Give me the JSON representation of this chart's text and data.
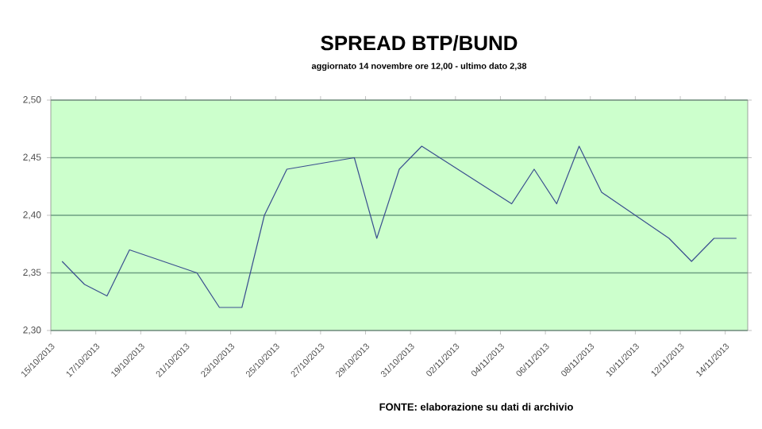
{
  "chart_data": {
    "type": "line",
    "title": "SPREAD BTP/BUND",
    "subtitle": "aggiornato 14 novembre ore 12,00 - ultimo dato 2,38",
    "x": [
      "2013-10-15T12:00",
      "2013-10-16T12:00",
      "2013-10-17T12:00",
      "2013-10-18T12:00",
      "2013-10-21T12:00",
      "2013-10-22T12:00",
      "2013-10-23T12:00",
      "2013-10-24T12:00",
      "2013-10-25T12:00",
      "2013-10-28T12:00",
      "2013-10-29T12:00",
      "2013-10-30T12:00",
      "2013-10-31T12:00",
      "2013-11-04T12:00",
      "2013-11-05T12:00",
      "2013-11-06T12:00",
      "2013-11-07T12:00",
      "2013-11-08T12:00",
      "2013-11-11T12:00",
      "2013-11-12T12:00",
      "2013-11-13T12:00",
      "2013-11-14T12:00"
    ],
    "values": [
      2.36,
      2.34,
      2.33,
      2.37,
      2.35,
      2.32,
      2.32,
      2.4,
      2.44,
      2.45,
      2.38,
      2.44,
      2.46,
      2.41,
      2.44,
      2.41,
      2.46,
      2.42,
      2.38,
      2.36,
      2.38,
      2.38
    ],
    "color": "#3a4f8f",
    "xlim": [
      "2013-10-15",
      "2013-11-15"
    ],
    "xticks": [
      {
        "value": "2013-10-15",
        "label": "15/10/2013"
      },
      {
        "value": "2013-10-17",
        "label": "17/10/2013"
      },
      {
        "value": "2013-10-19",
        "label": "19/10/2013"
      },
      {
        "value": "2013-10-21",
        "label": "21/10/2013"
      },
      {
        "value": "2013-10-23",
        "label": "23/10/2013"
      },
      {
        "value": "2013-10-25",
        "label": "25/10/2013"
      },
      {
        "value": "2013-10-27",
        "label": "27/10/2013"
      },
      {
        "value": "2013-10-29",
        "label": "29/10/2013"
      },
      {
        "value": "2013-10-31",
        "label": "31/10/2013"
      },
      {
        "value": "2013-11-02",
        "label": "02/11/2013"
      },
      {
        "value": "2013-11-04",
        "label": "04/11/2013"
      },
      {
        "value": "2013-11-06",
        "label": "06/11/2013"
      },
      {
        "value": "2013-11-08",
        "label": "08/11/2013"
      },
      {
        "value": "2013-11-10",
        "label": "10/11/2013"
      },
      {
        "value": "2013-11-12",
        "label": "12/11/2013"
      },
      {
        "value": "2013-11-14",
        "label": "14/11/2013"
      }
    ],
    "ylim": [
      2.3,
      2.5
    ],
    "yticks": [
      {
        "value": 2.3,
        "label": "2,30"
      },
      {
        "value": 2.35,
        "label": "2,35"
      },
      {
        "value": 2.4,
        "label": "2,40"
      },
      {
        "value": 2.45,
        "label": "2,45"
      },
      {
        "value": 2.5,
        "label": "2,50"
      }
    ],
    "grid": "y",
    "annotations": [
      "FONTE: elaborazione su dati di archivio"
    ]
  }
}
